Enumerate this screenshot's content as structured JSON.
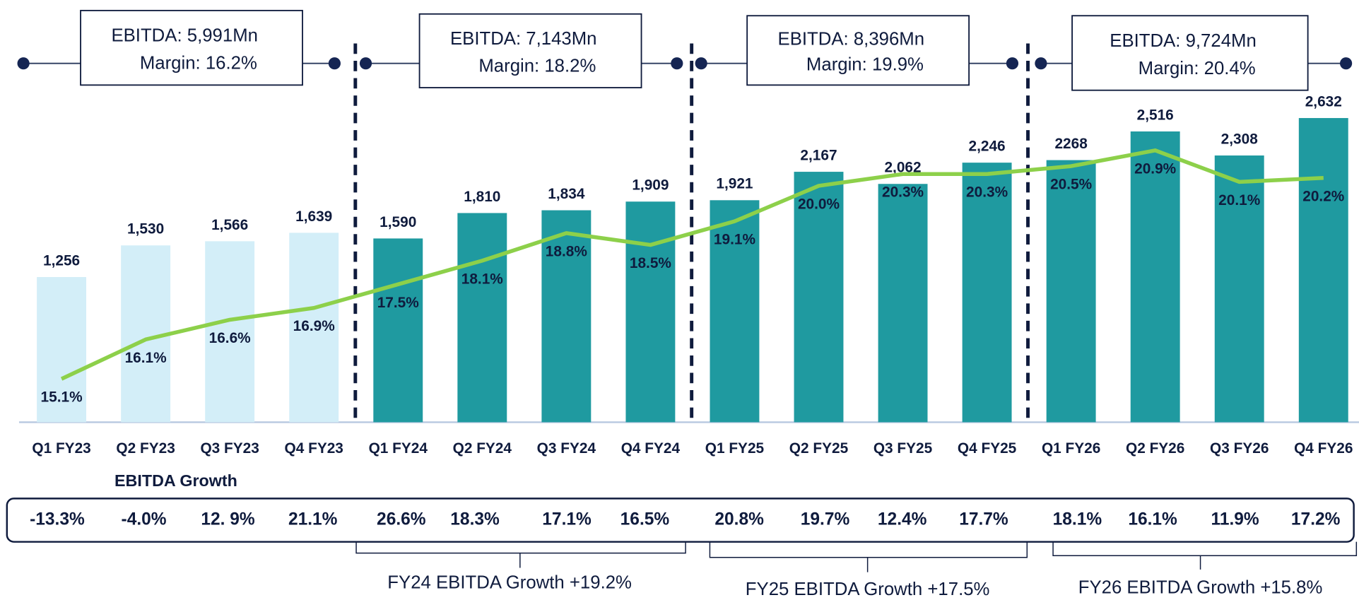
{
  "chart_data": {
    "type": "bar",
    "categories": [
      "Q1 FY23",
      "Q2 FY23",
      "Q3 FY23",
      "Q4 FY23",
      "Q1 FY24",
      "Q2 FY24",
      "Q3 FY24",
      "Q4 FY24",
      "Q1 FY25",
      "Q2 FY25",
      "Q3 FY25",
      "Q4 FY25",
      "Q1 FY26",
      "Q2 FY26",
      "Q3 FY26",
      "Q4 FY26"
    ],
    "ylim": [
      0,
      3000
    ],
    "y2lim": [
      14,
      22.8
    ],
    "series": [
      {
        "type": "bar",
        "color": "#1f9aa0",
        "colors": [
          "#d3eef8",
          "#d3eef8",
          "#d3eef8",
          "#d3eef8",
          "#1f9aa0",
          "#1f9aa0",
          "#1f9aa0",
          "#1f9aa0",
          "#1f9aa0",
          "#1f9aa0",
          "#1f9aa0",
          "#1f9aa0",
          "#1f9aa0",
          "#1f9aa0",
          "#1f9aa0",
          "#1f9aa0"
        ],
        "values": [
          1256,
          1530,
          1566,
          1639,
          1590,
          1810,
          1834,
          1909,
          1921,
          2167,
          2062,
          2246,
          2268,
          2516,
          2308,
          2632
        ],
        "value_labels": [
          "1,256",
          "1,530",
          "1,566",
          "1,639",
          "1,590",
          "1,810",
          "1,834",
          "1,909",
          "1,921",
          "2,167",
          "2,062",
          "2,246",
          "2268",
          "2,516",
          "2,308",
          "2,632"
        ]
      },
      {
        "type": "line",
        "axis": "y2",
        "color": "#8dd04a",
        "values": [
          15.1,
          16.1,
          16.6,
          16.9,
          17.5,
          18.1,
          18.8,
          18.5,
          19.1,
          20.0,
          20.3,
          20.3,
          20.5,
          20.9,
          20.1,
          20.2
        ],
        "value_labels": [
          "15.1%",
          "16.1%",
          "16.6%",
          "16.9%",
          "17.5%",
          "18.1%",
          "18.8%",
          "18.5%",
          "19.1%",
          "20.0%",
          "20.3%",
          "20.3%",
          "20.5%",
          "20.9%",
          "20.1%",
          "20.2%"
        ]
      }
    ],
    "year_boxes": [
      {
        "ebitda": "EBITDA: 5,991Mn",
        "margin": "Margin: 16.2%"
      },
      {
        "ebitda": "EBITDA: 7,143Mn",
        "margin": "Margin: 18.2%"
      },
      {
        "ebitda": "EBITDA: 8,396Mn",
        "margin": "Margin: 19.9%"
      },
      {
        "ebitda": "EBITDA: 9,724Mn",
        "margin": "Margin: 20.4%"
      }
    ],
    "growth_title": "EBITDA Growth",
    "growth": [
      "-13.3%",
      "-4.0%",
      "12. 9%",
      "21.1%",
      "26.6%",
      "18.3%",
      "17.1%",
      "16.5%",
      "20.8%",
      "19.7%",
      "12.4%",
      "17.7%",
      "18.1%",
      "16.1%",
      "11.9%",
      "17.2%"
    ],
    "fy_growth": [
      "FY24 EBITDA Growth +19.2%",
      "FY25 EBITDA Growth +17.5%",
      "FY26 EBITDA Growth +15.8%"
    ]
  }
}
